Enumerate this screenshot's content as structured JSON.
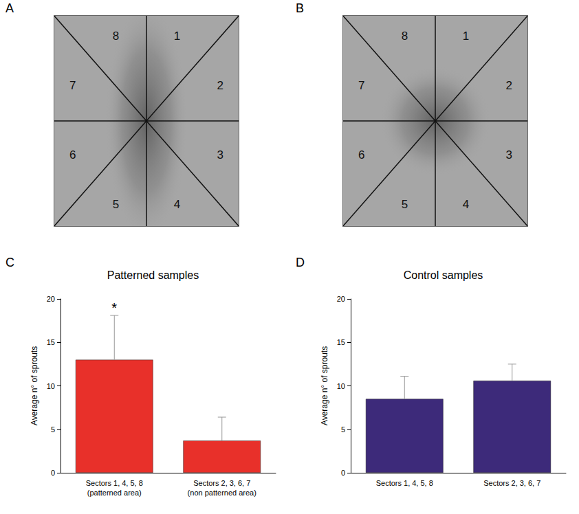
{
  "image_panels": [
    {
      "letter": "A",
      "sector_labels": [
        "1",
        "2",
        "3",
        "4",
        "5",
        "6",
        "7",
        "8"
      ]
    },
    {
      "letter": "B",
      "sector_labels": [
        "1",
        "2",
        "3",
        "4",
        "5",
        "6",
        "7",
        "8"
      ]
    }
  ],
  "chart_data": [
    {
      "letter": "C",
      "type": "bar",
      "title": "Patterned samples",
      "y_label": "Average n° of sprouts",
      "categories": [
        "Sectors 1, 4, 5, 8 (patterned area)",
        "Sectors 2, 3, 6, 7 (non patterned area)"
      ],
      "values": [
        13,
        3.7
      ],
      "errors": [
        5.1,
        2.7
      ],
      "color": "#e8302a",
      "ylim": [
        0,
        20
      ],
      "yticks": [
        0,
        5,
        10,
        15,
        20
      ],
      "grid": false,
      "annotations": [
        {
          "text": "*",
          "category": "Sectors 1, 4, 5, 8 (patterned area)"
        }
      ]
    },
    {
      "letter": "D",
      "type": "bar",
      "title": "Control samples",
      "y_label": "Average n° of sprouts",
      "categories": [
        "Sectors 1, 4, 5, 8",
        "Sectors 2, 3, 6, 7"
      ],
      "values": [
        8.5,
        10.6
      ],
      "errors": [
        2.6,
        1.9
      ],
      "color": "#3d2a7a",
      "ylim": [
        0,
        20
      ],
      "yticks": [
        0,
        5,
        10,
        15,
        20
      ],
      "grid": false,
      "annotations": []
    }
  ]
}
